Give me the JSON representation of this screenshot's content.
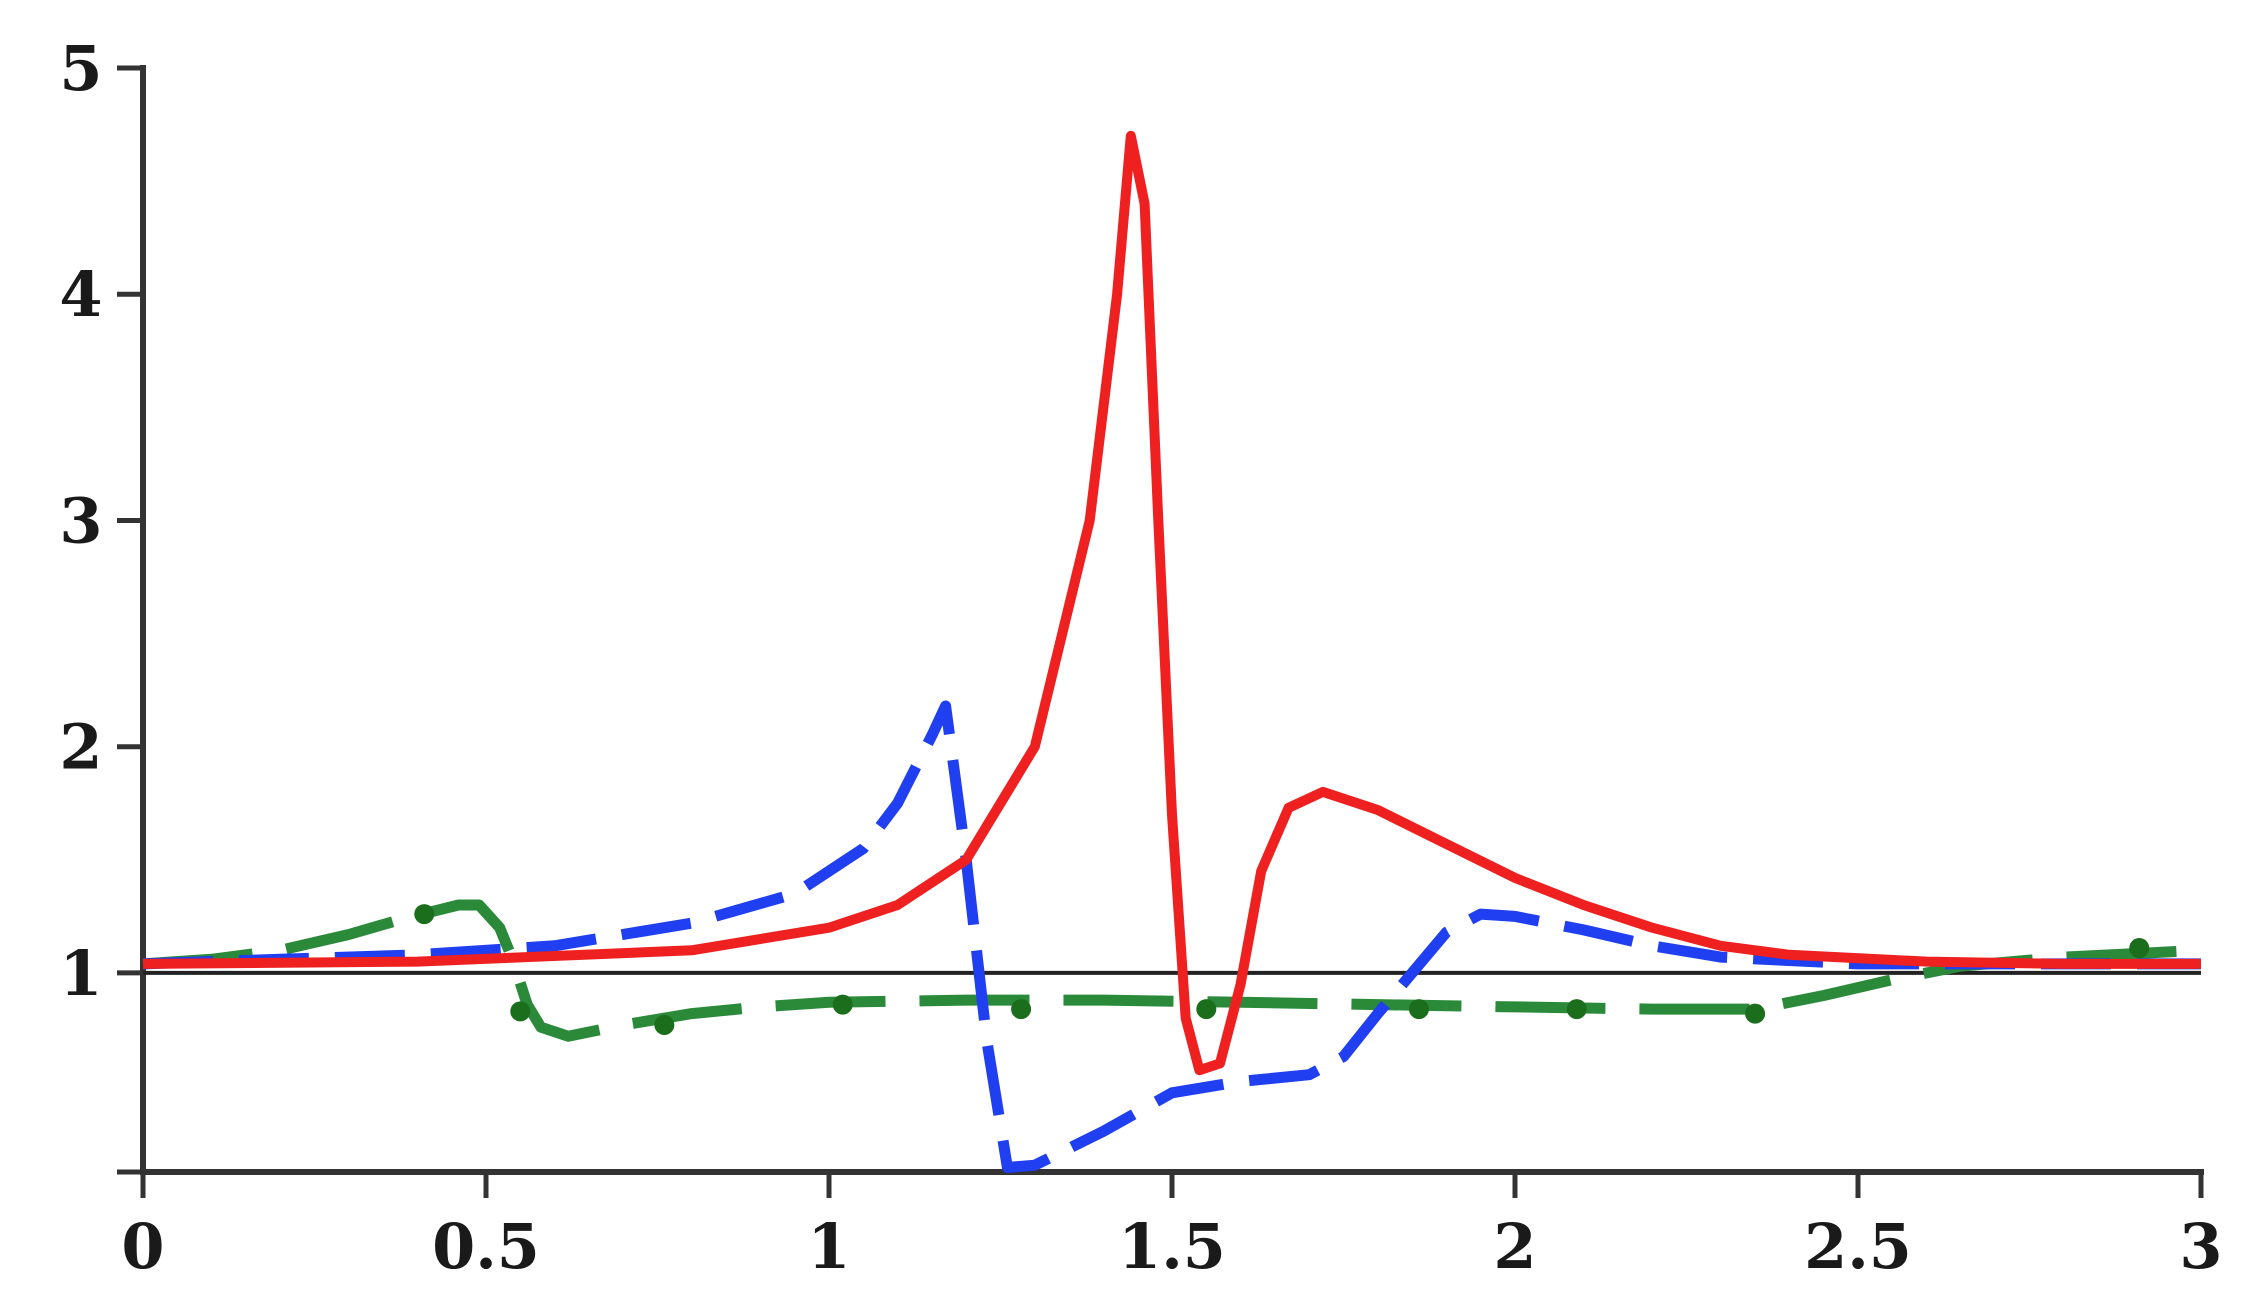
{
  "chart_data": {
    "type": "line",
    "title": "",
    "xlabel": "",
    "ylabel": "",
    "xlim": [
      0,
      3
    ],
    "ylim": [
      0.12,
      5
    ],
    "grid": false,
    "legend": "none",
    "reference_line": {
      "y": 1,
      "color": "#222222"
    },
    "x_ticks": [
      {
        "value": 0,
        "label": "0"
      },
      {
        "value": 0.5,
        "label": "0.5"
      },
      {
        "value": 1,
        "label": "1"
      },
      {
        "value": 1.5,
        "label": "1.5"
      },
      {
        "value": 2,
        "label": "2"
      },
      {
        "value": 2.5,
        "label": "2.5"
      },
      {
        "value": 3,
        "label": "3"
      }
    ],
    "y_ticks": [
      {
        "value": 1,
        "label": "1"
      },
      {
        "value": 2,
        "label": "2"
      },
      {
        "value": 3,
        "label": "3"
      },
      {
        "value": 4,
        "label": "4"
      },
      {
        "value": 5,
        "label": "5"
      }
    ],
    "series": [
      {
        "color": "#2a8a3a",
        "style": "dash-dot",
        "points": [
          [
            0,
            1.04
          ],
          [
            0.1,
            1.06
          ],
          [
            0.2,
            1.1
          ],
          [
            0.3,
            1.17
          ],
          [
            0.38,
            1.24
          ],
          [
            0.42,
            1.27
          ],
          [
            0.46,
            1.3
          ],
          [
            0.49,
            1.3
          ],
          [
            0.52,
            1.2
          ],
          [
            0.54,
            1.05
          ],
          [
            0.56,
            0.86
          ],
          [
            0.58,
            0.76
          ],
          [
            0.62,
            0.72
          ],
          [
            0.7,
            0.77
          ],
          [
            0.8,
            0.82
          ],
          [
            0.9,
            0.85
          ],
          [
            1.0,
            0.87
          ],
          [
            1.2,
            0.88
          ],
          [
            1.4,
            0.88
          ],
          [
            1.6,
            0.87
          ],
          [
            1.8,
            0.86
          ],
          [
            2.0,
            0.85
          ],
          [
            2.2,
            0.84
          ],
          [
            2.35,
            0.84
          ],
          [
            2.45,
            0.9
          ],
          [
            2.55,
            0.97
          ],
          [
            2.65,
            1.03
          ],
          [
            2.8,
            1.07
          ],
          [
            3.0,
            1.1
          ]
        ]
      },
      {
        "color": "#1f3ff0",
        "style": "dashed",
        "points": [
          [
            0,
            1.04
          ],
          [
            0.2,
            1.06
          ],
          [
            0.4,
            1.08
          ],
          [
            0.6,
            1.12
          ],
          [
            0.8,
            1.22
          ],
          [
            0.95,
            1.35
          ],
          [
            1.05,
            1.55
          ],
          [
            1.1,
            1.75
          ],
          [
            1.15,
            2.05
          ],
          [
            1.17,
            2.18
          ],
          [
            1.2,
            1.5
          ],
          [
            1.23,
            0.7
          ],
          [
            1.26,
            0.14
          ],
          [
            1.3,
            0.15
          ],
          [
            1.4,
            0.3
          ],
          [
            1.5,
            0.47
          ],
          [
            1.6,
            0.52
          ],
          [
            1.7,
            0.55
          ],
          [
            1.75,
            0.63
          ],
          [
            1.8,
            0.82
          ],
          [
            1.85,
            1.0
          ],
          [
            1.9,
            1.18
          ],
          [
            1.95,
            1.26
          ],
          [
            2.0,
            1.25
          ],
          [
            2.1,
            1.19
          ],
          [
            2.2,
            1.12
          ],
          [
            2.3,
            1.07
          ],
          [
            2.5,
            1.04
          ],
          [
            2.75,
            1.04
          ],
          [
            3.0,
            1.04
          ]
        ]
      },
      {
        "color": "#ee2020",
        "style": "solid",
        "points": [
          [
            0,
            1.04
          ],
          [
            0.4,
            1.05
          ],
          [
            0.8,
            1.1
          ],
          [
            1.0,
            1.2
          ],
          [
            1.1,
            1.3
          ],
          [
            1.2,
            1.5
          ],
          [
            1.3,
            2.0
          ],
          [
            1.38,
            3.0
          ],
          [
            1.42,
            4.0
          ],
          [
            1.44,
            4.7
          ],
          [
            1.46,
            4.4
          ],
          [
            1.48,
            3.0
          ],
          [
            1.5,
            1.7
          ],
          [
            1.52,
            0.8
          ],
          [
            1.54,
            0.57
          ],
          [
            1.57,
            0.6
          ],
          [
            1.6,
            0.95
          ],
          [
            1.63,
            1.45
          ],
          [
            1.67,
            1.73
          ],
          [
            1.72,
            1.8
          ],
          [
            1.8,
            1.72
          ],
          [
            1.9,
            1.57
          ],
          [
            2.0,
            1.42
          ],
          [
            2.1,
            1.3
          ],
          [
            2.2,
            1.2
          ],
          [
            2.3,
            1.12
          ],
          [
            2.4,
            1.08
          ],
          [
            2.6,
            1.05
          ],
          [
            2.8,
            1.04
          ],
          [
            3.0,
            1.04
          ]
        ]
      }
    ],
    "markers": {
      "color": "#1b6e1b",
      "points": [
        [
          0.41,
          1.26
        ],
        [
          0.55,
          0.83
        ],
        [
          0.76,
          0.77
        ],
        [
          1.02,
          0.86
        ],
        [
          1.28,
          0.84
        ],
        [
          1.55,
          0.84
        ],
        [
          1.86,
          0.84
        ],
        [
          2.09,
          0.84
        ],
        [
          2.35,
          0.82
        ],
        [
          2.91,
          1.11
        ]
      ]
    }
  }
}
